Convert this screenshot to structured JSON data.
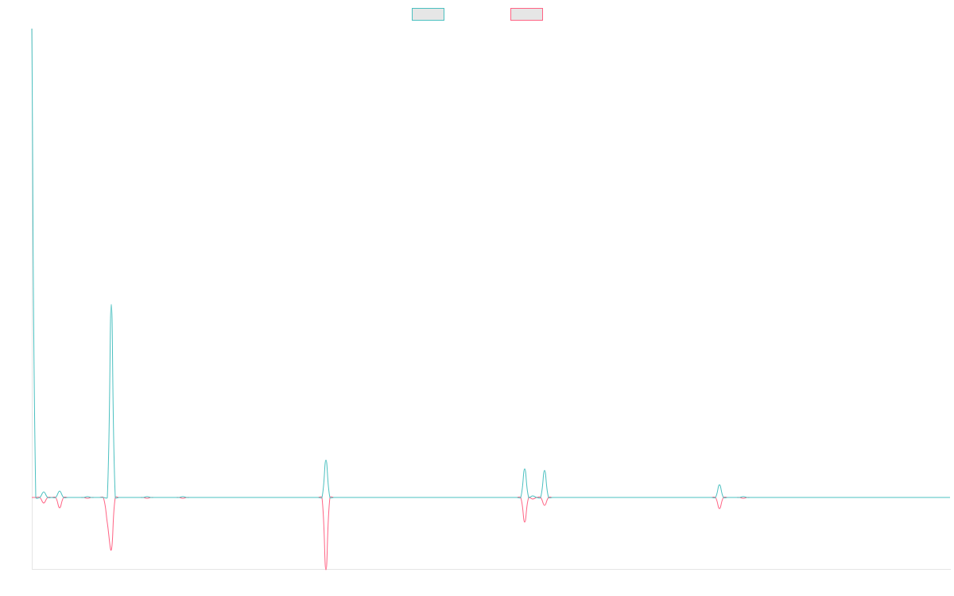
{
  "chart_data": {
    "type": "line",
    "series": [
      {
        "color": "#4bc0c0",
        "values": [
          590,
          0,
          0,
          7,
          0,
          0,
          0,
          8,
          0,
          0,
          0,
          0,
          0,
          0,
          1,
          0,
          0,
          0,
          0,
          0,
          243,
          0,
          0,
          0,
          0,
          0,
          0,
          0,
          0,
          1,
          0,
          0,
          0,
          0,
          0,
          0,
          0,
          0,
          1,
          0,
          0,
          0,
          0,
          0,
          0,
          0,
          0,
          0,
          0,
          0,
          0,
          0,
          0,
          0,
          0,
          0,
          0,
          0,
          0,
          0,
          0,
          0,
          0,
          0,
          0,
          0,
          0,
          0,
          0,
          0,
          0,
          0,
          0,
          0,
          47,
          0,
          0,
          0,
          0,
          0,
          0,
          0,
          0,
          0,
          0,
          0,
          0,
          0,
          0,
          0,
          0,
          0,
          0,
          0,
          0,
          0,
          0,
          0,
          0,
          0,
          0,
          0,
          0,
          0,
          0,
          0,
          0,
          0,
          0,
          0,
          0,
          0,
          0,
          0,
          0,
          0,
          0,
          0,
          0,
          0,
          0,
          0,
          0,
          0,
          36,
          0,
          2,
          0,
          0,
          34,
          0,
          0,
          0,
          0,
          0,
          0,
          0,
          0,
          0,
          0,
          0,
          0,
          0,
          0,
          0,
          0,
          0,
          0,
          0,
          0,
          0,
          0,
          0,
          0,
          0,
          0,
          0,
          0,
          0,
          0,
          0,
          0,
          0,
          0,
          0,
          0,
          0,
          0,
          0,
          0,
          0,
          0,
          0,
          16,
          0,
          0,
          0,
          0,
          0,
          1,
          0,
          0,
          0,
          0,
          0,
          0,
          0,
          0,
          0,
          0,
          0,
          0,
          0,
          0,
          0,
          0,
          0,
          0,
          0,
          0,
          0,
          0,
          0,
          0,
          0,
          0,
          0,
          0,
          0,
          0,
          0,
          0,
          0,
          0,
          0,
          0,
          0,
          0,
          0,
          0,
          0,
          0,
          0,
          0,
          0,
          0,
          0,
          0,
          0,
          0,
          0,
          0
        ]
      },
      {
        "color": "#ff6384",
        "values": [
          0,
          0,
          0,
          -7,
          0,
          0,
          0,
          -13,
          0,
          0,
          0,
          0,
          0,
          0,
          -1,
          0,
          0,
          0,
          0,
          -32,
          -66,
          0,
          0,
          0,
          0,
          0,
          0,
          0,
          0,
          -1,
          0,
          0,
          0,
          0,
          0,
          0,
          0,
          0,
          -1,
          0,
          0,
          0,
          0,
          0,
          0,
          0,
          0,
          0,
          0,
          0,
          0,
          0,
          0,
          0,
          0,
          0,
          0,
          0,
          0,
          0,
          0,
          0,
          0,
          0,
          0,
          0,
          0,
          0,
          0,
          0,
          0,
          0,
          0,
          0,
          -91,
          0,
          0,
          0,
          0,
          0,
          0,
          0,
          0,
          0,
          0,
          0,
          0,
          0,
          0,
          0,
          0,
          0,
          0,
          0,
          0,
          0,
          0,
          0,
          0,
          0,
          0,
          0,
          0,
          0,
          0,
          0,
          0,
          0,
          0,
          0,
          0,
          0,
          0,
          0,
          0,
          0,
          0,
          0,
          0,
          0,
          0,
          0,
          0,
          0,
          -31,
          0,
          -2,
          0,
          0,
          -10,
          0,
          0,
          0,
          0,
          0,
          0,
          0,
          0,
          0,
          0,
          0,
          0,
          0,
          0,
          0,
          0,
          0,
          0,
          0,
          0,
          0,
          0,
          0,
          0,
          0,
          0,
          0,
          0,
          0,
          0,
          0,
          0,
          0,
          0,
          0,
          0,
          0,
          0,
          0,
          0,
          0,
          0,
          0,
          -14,
          0,
          0,
          0,
          0,
          0,
          -1,
          0,
          0,
          0,
          0,
          0,
          0,
          0,
          0,
          0,
          0,
          0,
          0,
          0,
          0,
          0,
          0,
          0,
          0,
          0,
          0,
          0,
          0,
          0,
          0,
          0,
          0,
          0,
          0,
          0,
          0,
          0,
          0,
          0,
          0,
          0,
          0,
          0,
          0,
          0,
          0,
          0,
          0,
          0,
          0,
          0,
          0,
          0,
          0,
          0,
          0,
          0,
          0
        ]
      }
    ],
    "ylim": [
      -90,
      590
    ]
  }
}
